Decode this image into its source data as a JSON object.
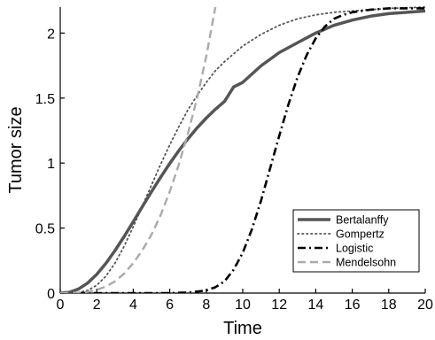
{
  "chart_data": {
    "type": "line",
    "xlabel": "Time",
    "ylabel": "Tumor size",
    "xlim": [
      0,
      20
    ],
    "ylim": [
      0,
      2.2
    ],
    "xticks": [
      "0",
      "2",
      "4",
      "6",
      "8",
      "10",
      "12",
      "14",
      "16",
      "18",
      "20"
    ],
    "yticks": [
      "0",
      "0.5",
      "1",
      "1.5",
      "2"
    ],
    "grid": false,
    "legend_position": "bottom-right",
    "series": [
      {
        "name": "Bertalanffy",
        "style": "solid-thick",
        "color": "#555555",
        "x": [
          0,
          0.5,
          1,
          1.5,
          2,
          2.5,
          3,
          3.5,
          4,
          4.5,
          5,
          5.5,
          6,
          6.5,
          7,
          7.5,
          8,
          8.5,
          9,
          9.5,
          10,
          11,
          12,
          13,
          14,
          15,
          16,
          17,
          18,
          19,
          20
        ],
        "y": [
          0,
          0.006,
          0.031,
          0.077,
          0.144,
          0.228,
          0.327,
          0.435,
          0.549,
          0.665,
          0.78,
          0.891,
          0.997,
          1.096,
          1.187,
          1.271,
          1.346,
          1.414,
          1.474,
          1.586,
          1.621,
          1.748,
          1.85,
          1.926,
          2.0,
          2.06,
          2.1,
          2.13,
          2.15,
          2.16,
          2.17
        ]
      },
      {
        "name": "Gompertz",
        "style": "dotted",
        "color": "#555555",
        "x": [
          0,
          1,
          1.5,
          2,
          2.5,
          3,
          3.5,
          4,
          4.5,
          5,
          5.5,
          6,
          6.5,
          7,
          7.5,
          8,
          8.5,
          9,
          10,
          11,
          12,
          13,
          14,
          15,
          16,
          17,
          18,
          20
        ],
        "y": [
          0,
          0.005,
          0.02,
          0.06,
          0.13,
          0.23,
          0.36,
          0.51,
          0.67,
          0.83,
          0.99,
          1.14,
          1.28,
          1.41,
          1.52,
          1.62,
          1.71,
          1.78,
          1.9,
          1.99,
          2.06,
          2.11,
          2.14,
          2.16,
          2.17,
          2.18,
          2.19,
          2.2
        ]
      },
      {
        "name": "Logistic",
        "style": "dash-dot",
        "color": "#000000",
        "x": [
          0,
          2,
          4,
          6,
          7,
          8,
          8.5,
          9,
          9.5,
          10,
          10.5,
          11,
          11.5,
          12,
          12.5,
          13,
          13.5,
          14,
          14.5,
          15,
          15.5,
          16,
          17,
          18,
          19,
          20
        ],
        "y": [
          0,
          0,
          0,
          0,
          0.004,
          0.02,
          0.045,
          0.09,
          0.18,
          0.31,
          0.49,
          0.71,
          0.96,
          1.21,
          1.45,
          1.66,
          1.83,
          1.96,
          2.05,
          2.11,
          2.14,
          2.16,
          2.18,
          2.19,
          2.19,
          2.19
        ]
      },
      {
        "name": "Mendelsohn",
        "style": "dashed",
        "color": "#aaaaaa",
        "x": [
          0,
          1,
          1.5,
          2,
          2.5,
          3,
          3.5,
          4,
          4.5,
          5,
          5.5,
          6,
          6.5,
          7,
          7.5,
          8,
          8.5
        ],
        "y": [
          0,
          0.002,
          0.01,
          0.025,
          0.05,
          0.09,
          0.15,
          0.23,
          0.33,
          0.45,
          0.6,
          0.78,
          0.99,
          1.23,
          1.5,
          1.82,
          2.2
        ]
      }
    ]
  }
}
